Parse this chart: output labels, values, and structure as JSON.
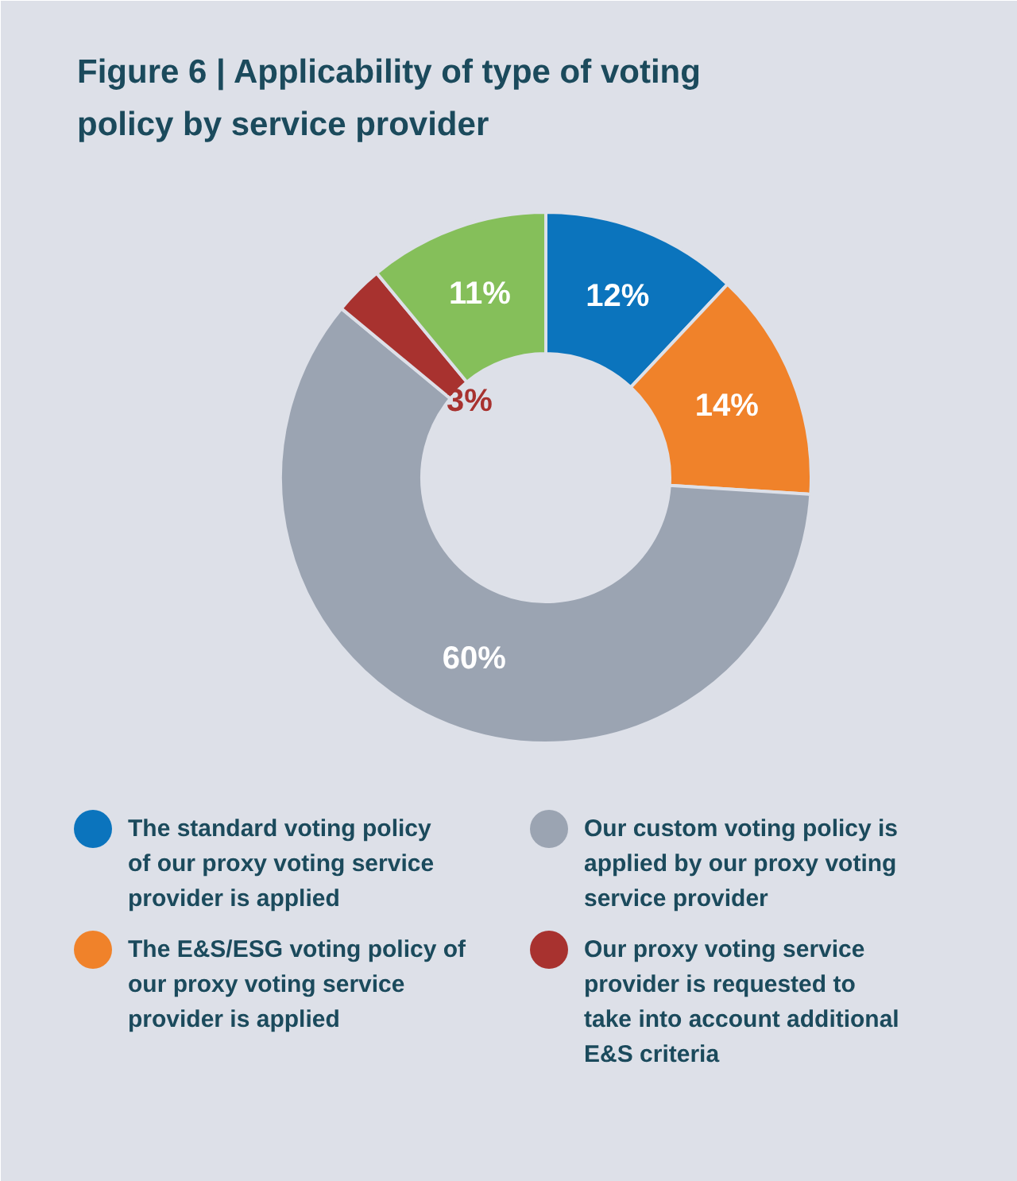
{
  "chart_data": {
    "type": "donut",
    "title": "Figure 6 | Applicability of type of voting policy by service provider",
    "categories": [
      "The standard voting policy of our proxy voting service provider is applied",
      "The E&S/ESG voting policy of our proxy voting service provider is applied",
      "Our custom voting policy is applied by our proxy voting service provider",
      "Our proxy voting service provider is requested to take into account additional E&S criteria",
      null
    ],
    "values": [
      12,
      14,
      60,
      3,
      11
    ],
    "colors": [
      "#0b74bd",
      "#f0822a",
      "#9ba4b2",
      "#a8322f",
      "#85bf5a"
    ],
    "value_labels": [
      "12%",
      "14%",
      "60%",
      "3%",
      "11%"
    ],
    "legend": "bottom"
  }
}
